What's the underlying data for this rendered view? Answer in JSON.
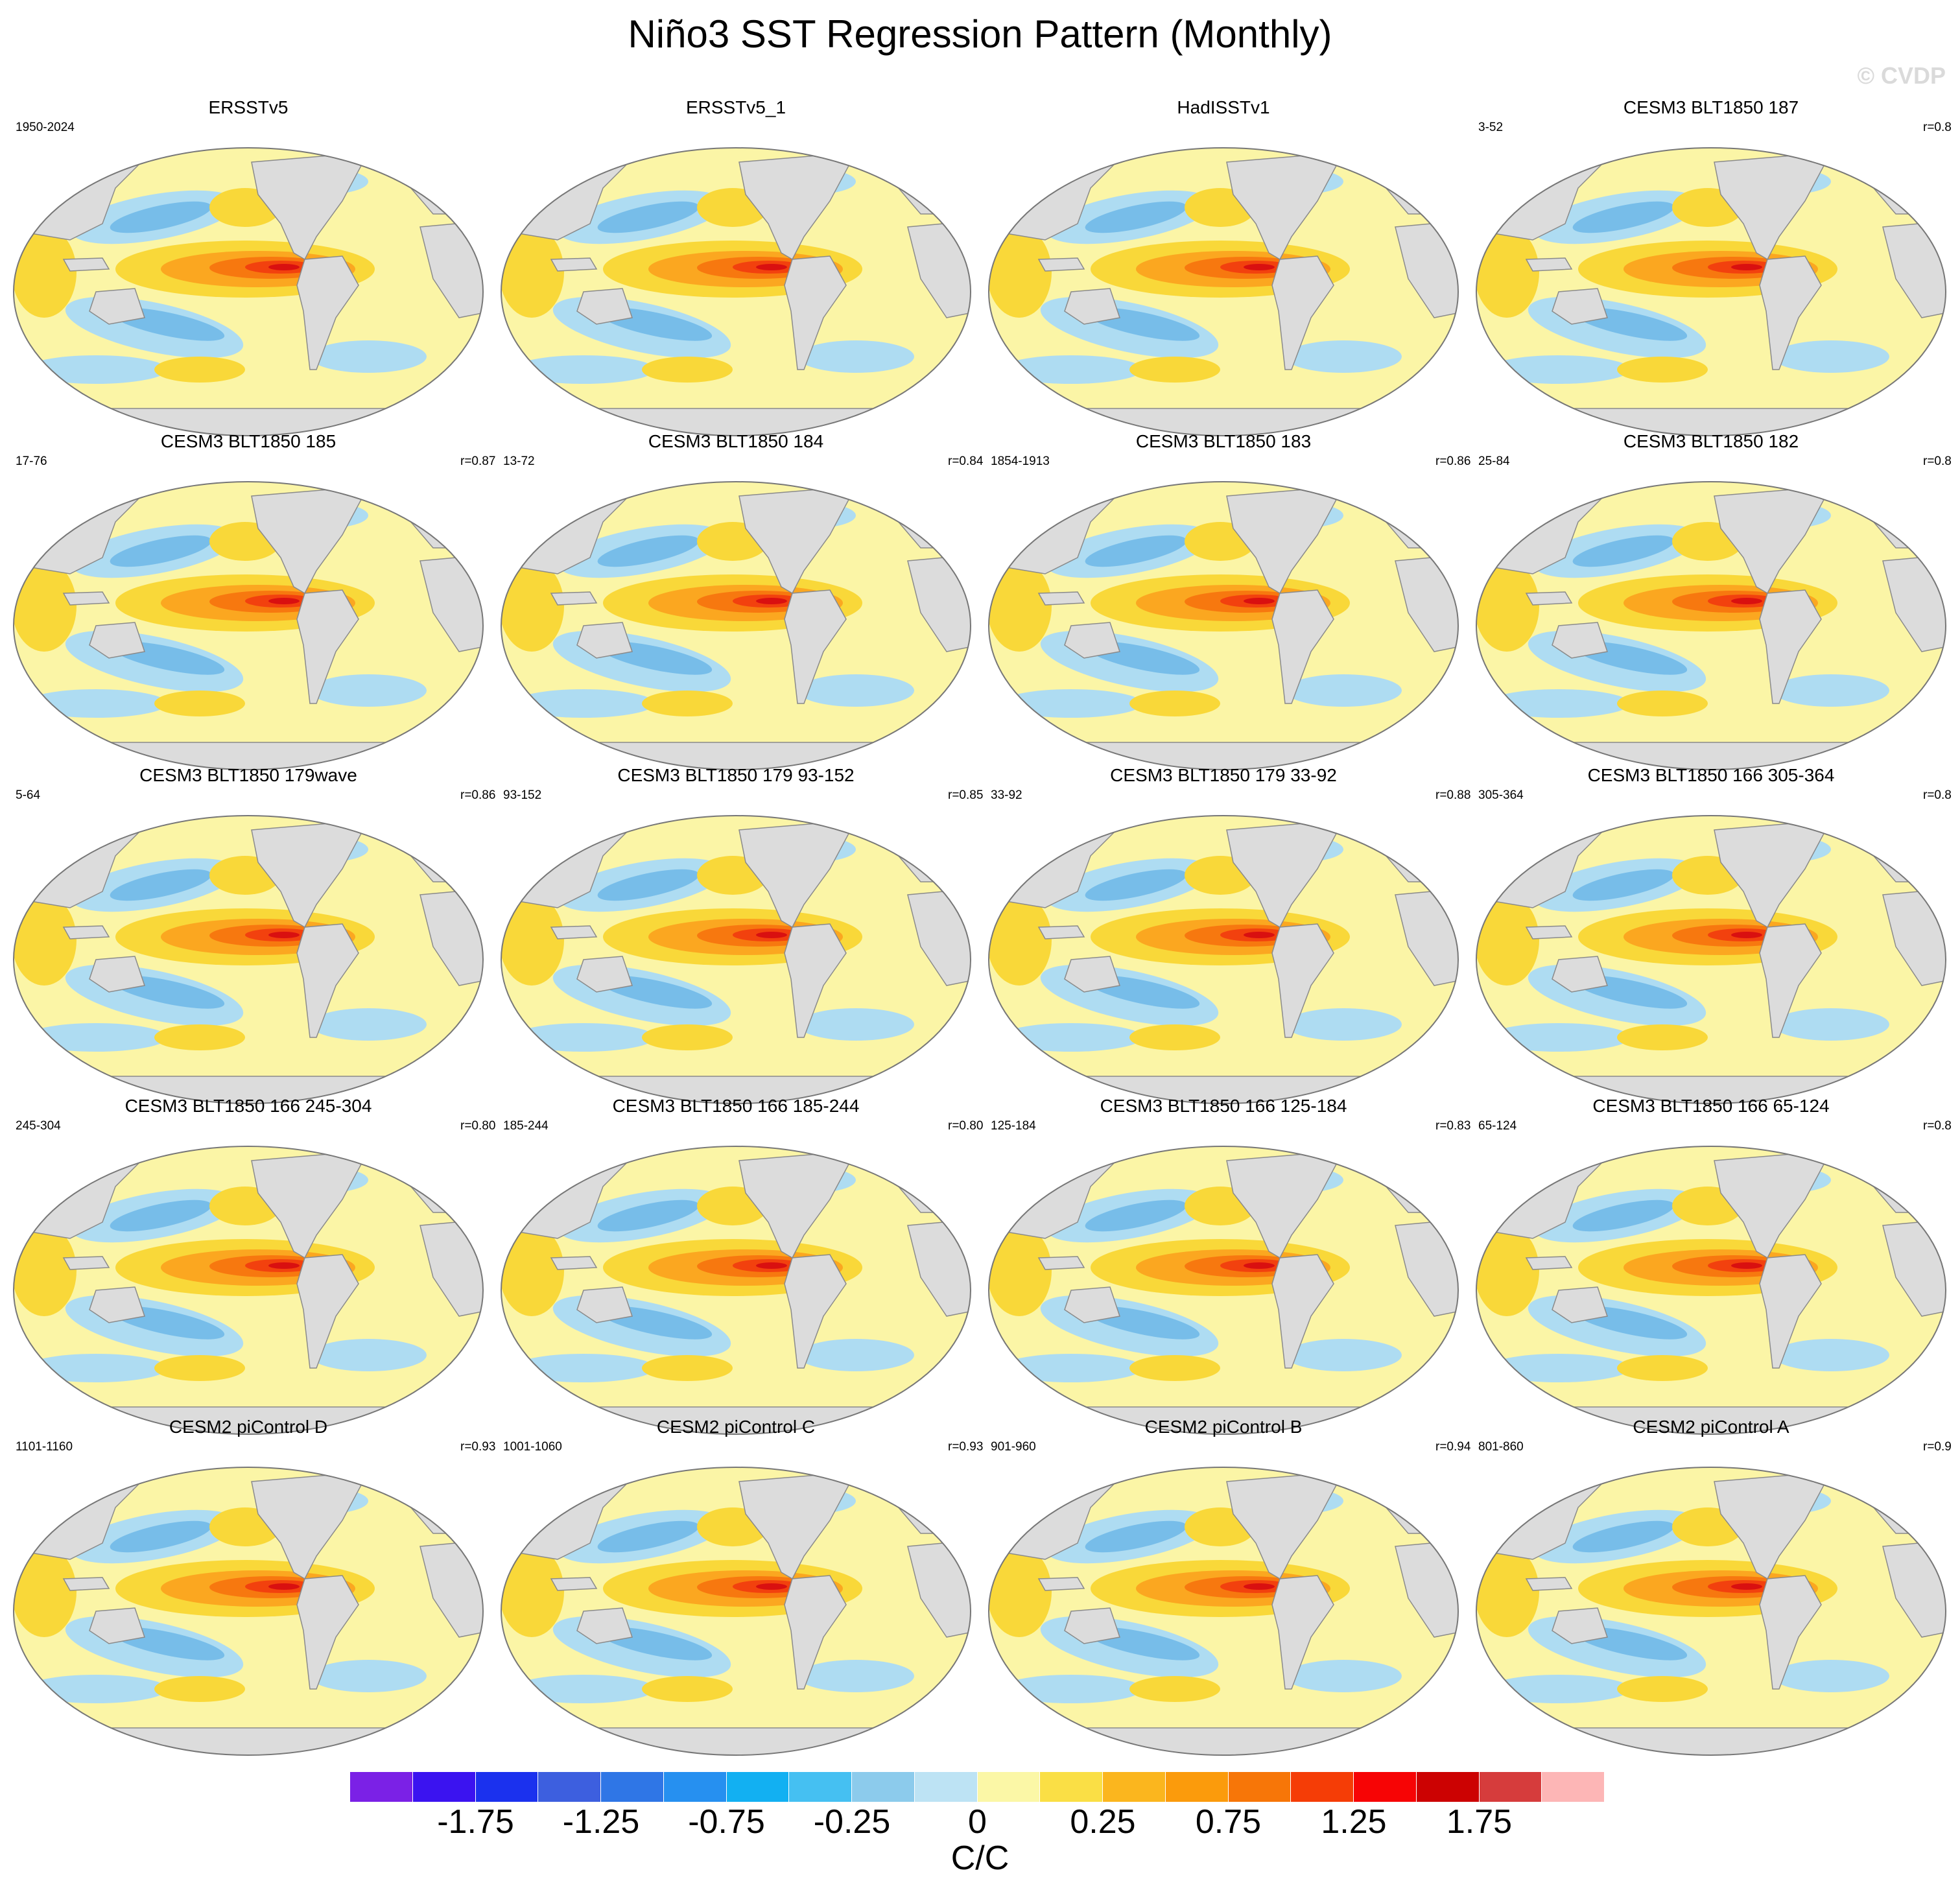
{
  "title": "Niño3 SST Regression Pattern (Monthly)",
  "watermark": "© CVDP",
  "colors": {
    "land": "#dcdcdc",
    "ocean_bg": "#fbf5a6",
    "light_blue": "#aedcf2",
    "mid_blue": "#77bde9",
    "deep_blue": "#3aa2e8",
    "pale_yellow": "#fbf5a6",
    "yellow": "#f9d839",
    "orange": "#fba720",
    "dark_orange": "#f7780f",
    "red_orange": "#f2410e",
    "red": "#d91010"
  },
  "panels": [
    {
      "title": "ERSSTv5",
      "period": "1950-2024",
      "r": ""
    },
    {
      "title": "ERSSTv5_1",
      "period": "",
      "r": ""
    },
    {
      "title": "HadISSTv1",
      "period": "",
      "r": ""
    },
    {
      "title": "CESM3 BLT1850 187",
      "period": "3-52",
      "r": "r=0.8"
    },
    {
      "title": "CESM3 BLT1850 185",
      "period": "17-76",
      "r": "r=0.87"
    },
    {
      "title": "CESM3 BLT1850 184",
      "period": "13-72",
      "r": "r=0.84"
    },
    {
      "title": "CESM3 BLT1850 183",
      "period": "1854-1913",
      "r": "r=0.86"
    },
    {
      "title": "CESM3 BLT1850 182",
      "period": "25-84",
      "r": "r=0.8"
    },
    {
      "title": "CESM3 BLT1850 179wave",
      "period": "5-64",
      "r": "r=0.86"
    },
    {
      "title": "CESM3 BLT1850 179 93-152",
      "period": "93-152",
      "r": "r=0.85"
    },
    {
      "title": "CESM3 BLT1850 179 33-92",
      "period": "33-92",
      "r": "r=0.88"
    },
    {
      "title": "CESM3 BLT1850 166 305-364",
      "period": "305-364",
      "r": "r=0.8"
    },
    {
      "title": "CESM3 BLT1850 166 245-304",
      "period": "245-304",
      "r": "r=0.80"
    },
    {
      "title": "CESM3 BLT1850 166 185-244",
      "period": "185-244",
      "r": "r=0.80"
    },
    {
      "title": "CESM3 BLT1850 166 125-184",
      "period": "125-184",
      "r": "r=0.83"
    },
    {
      "title": "CESM3 BLT1850 166 65-124",
      "period": "65-124",
      "r": "r=0.8"
    },
    {
      "title": "CESM2 piControl D",
      "period": "1101-1160",
      "r": "r=0.93"
    },
    {
      "title": "CESM2 piControl C",
      "period": "1001-1060",
      "r": "r=0.93"
    },
    {
      "title": "CESM2 piControl B",
      "period": "901-960",
      "r": "r=0.94"
    },
    {
      "title": "CESM2 piControl A",
      "period": "801-860",
      "r": "r=0.9"
    }
  ],
  "colorbar": {
    "colors": [
      "#7b21e6",
      "#3b13f0",
      "#1b31ee",
      "#3d5fdf",
      "#2f76e6",
      "#2690f0",
      "#12b0f2",
      "#45c0f2",
      "#8ccbec",
      "#bde3f4",
      "#fbf7a6",
      "#fadf45",
      "#fbb61e",
      "#fb9b0c",
      "#f77608",
      "#f53d06",
      "#f70405",
      "#cc0202",
      "#d63c3c",
      "#fdb6b6"
    ],
    "labels": [
      "-1.75",
      "-1.25",
      "-0.75",
      "-0.25",
      "0",
      "0.25",
      "0.75",
      "1.25",
      "1.75"
    ],
    "label_boundary_index": [
      1,
      3,
      5,
      7,
      9,
      11,
      13,
      15,
      17
    ],
    "units": "C/C"
  }
}
